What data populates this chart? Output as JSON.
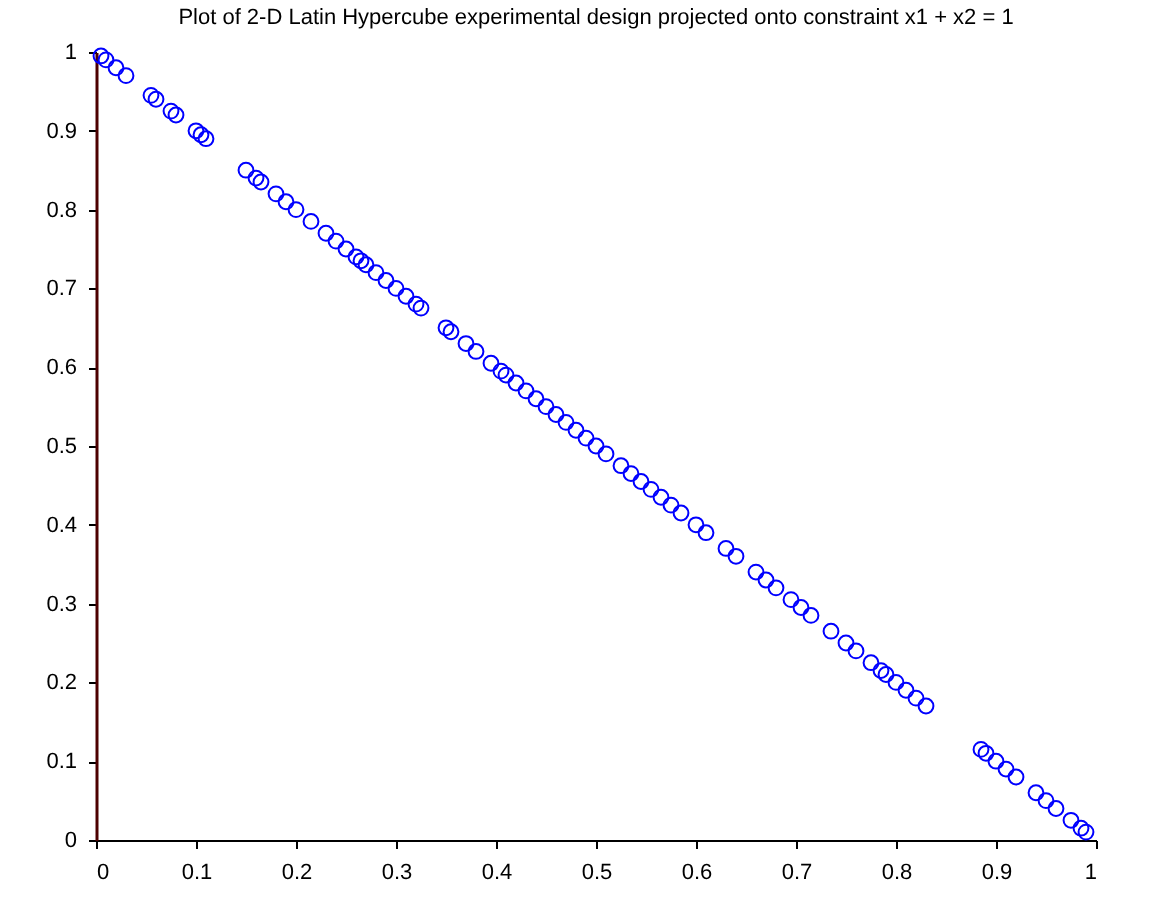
{
  "chart_data": {
    "type": "scatter",
    "title": "Plot of 2-D Latin Hypercube experimental design projected onto constraint x1 + x2 = 1",
    "x": [
      0.005,
      0.01,
      0.02,
      0.03,
      0.055,
      0.06,
      0.075,
      0.08,
      0.1,
      0.105,
      0.11,
      0.15,
      0.16,
      0.165,
      0.18,
      0.19,
      0.2,
      0.215,
      0.23,
      0.24,
      0.25,
      0.26,
      0.265,
      0.27,
      0.28,
      0.29,
      0.3,
      0.31,
      0.32,
      0.325,
      0.35,
      0.355,
      0.37,
      0.38,
      0.395,
      0.405,
      0.41,
      0.42,
      0.43,
      0.44,
      0.45,
      0.46,
      0.47,
      0.48,
      0.49,
      0.5,
      0.51,
      0.525,
      0.535,
      0.545,
      0.555,
      0.565,
      0.575,
      0.585,
      0.6,
      0.61,
      0.63,
      0.64,
      0.66,
      0.67,
      0.68,
      0.695,
      0.705,
      0.715,
      0.735,
      0.75,
      0.76,
      0.775,
      0.785,
      0.79,
      0.8,
      0.81,
      0.82,
      0.83,
      0.885,
      0.89,
      0.9,
      0.91,
      0.92,
      0.94,
      0.95,
      0.96,
      0.975,
      0.985,
      0.99
    ],
    "series": [
      {
        "color": "#0000ff",
        "values": [
          0.995,
          0.99,
          0.98,
          0.97,
          0.945,
          0.94,
          0.925,
          0.92,
          0.9,
          0.895,
          0.89,
          0.85,
          0.84,
          0.835,
          0.82,
          0.81,
          0.8,
          0.785,
          0.77,
          0.76,
          0.75,
          0.74,
          0.735,
          0.73,
          0.72,
          0.71,
          0.7,
          0.69,
          0.68,
          0.675,
          0.65,
          0.645,
          0.63,
          0.62,
          0.605,
          0.595,
          0.59,
          0.58,
          0.57,
          0.56,
          0.55,
          0.54,
          0.53,
          0.52,
          0.51,
          0.5,
          0.49,
          0.475,
          0.465,
          0.455,
          0.445,
          0.435,
          0.425,
          0.415,
          0.4,
          0.39,
          0.37,
          0.36,
          0.34,
          0.33,
          0.32,
          0.305,
          0.295,
          0.285,
          0.265,
          0.25,
          0.24,
          0.225,
          0.215,
          0.21,
          0.2,
          0.19,
          0.18,
          0.17,
          0.115,
          0.11,
          0.1,
          0.09,
          0.08,
          0.06,
          0.05,
          0.04,
          0.025,
          0.015,
          0.01
        ]
      }
    ],
    "xlim": [
      0,
      1
    ],
    "ylim": [
      0,
      1
    ],
    "xticks": [
      0,
      0.1,
      0.2,
      0.3,
      0.4,
      0.5,
      0.6,
      0.7,
      0.8,
      0.9,
      1
    ],
    "yticks": [
      0,
      0.1,
      0.2,
      0.3,
      0.4,
      0.5,
      0.6,
      0.7,
      0.8,
      0.9,
      1
    ],
    "marker": "circle",
    "grid": false,
    "legend": false
  }
}
